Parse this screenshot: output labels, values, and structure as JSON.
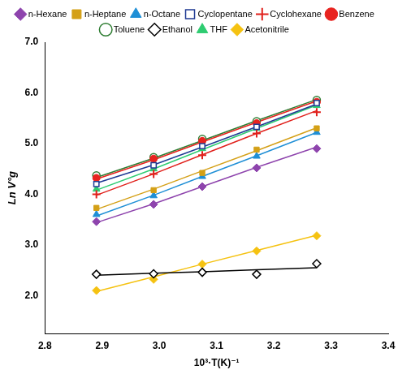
{
  "chart_data": {
    "type": "scatter",
    "x_label": "10³·T(K)⁻¹",
    "y_label": "Ln V°g",
    "x": [
      2.89,
      2.99,
      3.075,
      3.17,
      3.275
    ],
    "series": [
      {
        "name": "n-Hexane",
        "color": "#8e44ad",
        "marker": "diamond",
        "values": [
          3.46,
          3.8,
          4.15,
          4.52,
          4.9
        ],
        "fit": [
          3.44,
          3.81,
          4.15,
          4.53,
          4.93
        ]
      },
      {
        "name": "n-Heptane",
        "color": "#d4a017",
        "marker": "square",
        "values": [
          3.73,
          4.08,
          4.42,
          4.88,
          5.3
        ],
        "fit": [
          3.7,
          4.1,
          4.46,
          4.86,
          5.31
        ]
      },
      {
        "name": "n-Octane",
        "color": "#1f8fd6",
        "marker": "triangle",
        "values": [
          3.6,
          3.97,
          4.35,
          4.75,
          5.22
        ],
        "fit": [
          3.57,
          3.98,
          4.35,
          4.76,
          5.22
        ]
      },
      {
        "name": "Cyclopentane",
        "color": "#1f3a93",
        "marker": "open_square",
        "values": [
          4.2,
          4.57,
          4.95,
          5.33,
          5.8
        ],
        "fit": [
          4.22,
          4.58,
          4.93,
          5.33,
          5.78
        ]
      },
      {
        "name": "Cyclohexane",
        "color": "#e0201b",
        "marker": "plus",
        "values": [
          4.0,
          4.4,
          4.77,
          5.2,
          5.62
        ],
        "fit": [
          3.98,
          4.4,
          4.78,
          5.2,
          5.65
        ]
      },
      {
        "name": "Benzene",
        "color": "#e8231f",
        "marker": "circle",
        "values": [
          4.32,
          4.7,
          5.05,
          5.4,
          5.82
        ],
        "fit": [
          4.3,
          4.68,
          5.03,
          5.42,
          5.84
        ]
      },
      {
        "name": "Toluene",
        "color": "#2e7d32",
        "marker": "open_circle",
        "values": [
          4.37,
          4.73,
          5.09,
          5.44,
          5.86
        ],
        "fit": [
          4.33,
          4.71,
          5.06,
          5.45,
          5.87
        ]
      },
      {
        "name": "Ethanol",
        "color": "#000000",
        "marker": "open_diamond",
        "values": [
          2.42,
          2.43,
          2.46,
          2.42,
          2.63
        ],
        "fit": [
          2.4,
          2.44,
          2.47,
          2.51,
          2.55
        ]
      },
      {
        "name": "THF",
        "color": "#2ecc71",
        "marker": "triangle",
        "values": [
          4.1,
          4.5,
          4.9,
          5.3,
          5.75
        ],
        "fit": [
          4.08,
          4.5,
          4.88,
          5.3,
          5.76
        ]
      },
      {
        "name": "Acetonitrile",
        "color": "#f5c211",
        "marker": "diamond",
        "values": [
          2.1,
          2.32,
          2.62,
          2.88,
          3.18
        ],
        "fit": [
          2.08,
          2.37,
          2.62,
          2.89,
          3.19
        ]
      }
    ],
    "xlim": [
      2.8,
      3.4
    ],
    "xticks": [
      2.8,
      2.9,
      {
        "value": 3,
        "label": "3.0"
      },
      3.1,
      3.2,
      3.3,
      3.4
    ],
    "ylim": [
      1.25,
      7
    ],
    "yticks": [
      {
        "value": 2,
        "label": "2.0"
      },
      {
        "value": 3,
        "label": "3.0"
      },
      {
        "value": 4,
        "label": "4.0"
      },
      {
        "value": 5,
        "label": "5.0"
      },
      {
        "value": 6,
        "label": "6.0"
      },
      {
        "value": 7,
        "label": "7.0"
      }
    ],
    "grid": false,
    "legend": "top"
  }
}
